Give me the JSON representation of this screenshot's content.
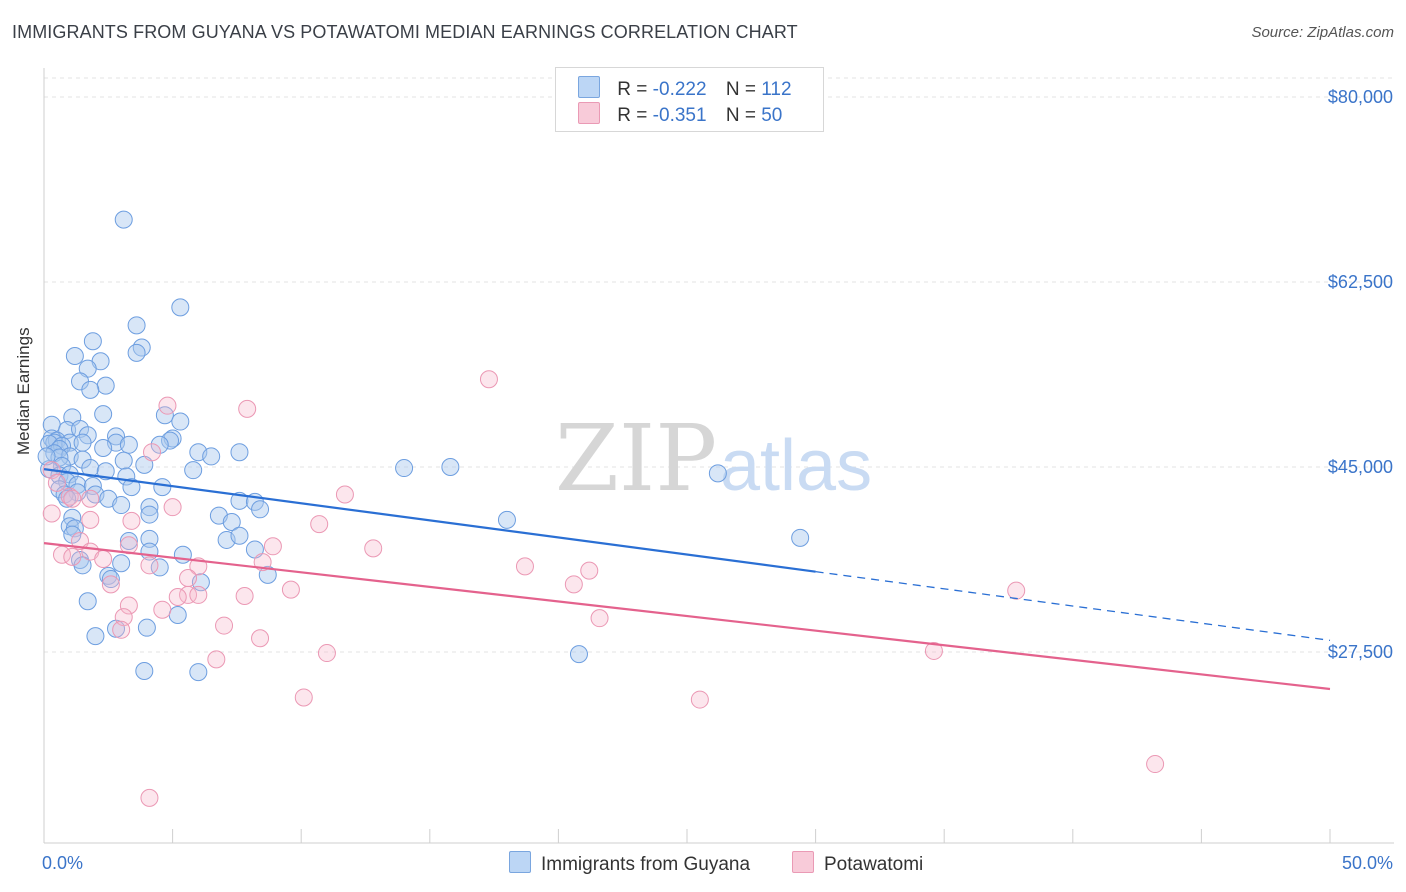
{
  "header": {
    "title": "IMMIGRANTS FROM GUYANA VS POTAWATOMI MEDIAN EARNINGS CORRELATION CHART",
    "source": "Source: ZipAtlas.com"
  },
  "watermark": {
    "zip": "ZIP",
    "atlas": "atlas"
  },
  "legend": {
    "rows": [
      {
        "r_label": "R =",
        "r_value": "-0.222",
        "n_label": "N =",
        "n_value": "112"
      },
      {
        "r_label": "R =",
        "r_value": "-0.351",
        "n_label": "N =",
        "n_value": "50"
      }
    ]
  },
  "chart_data": {
    "type": "scatter",
    "title": "IMMIGRANTS FROM GUYANA VS POTAWATOMI MEDIAN EARNINGS CORRELATION CHART",
    "xlabel": "",
    "ylabel": "Median Earnings",
    "xlim": [
      0,
      50
    ],
    "ylim": [
      10000,
      82000
    ],
    "x_tick_labels": [
      "0.0%",
      "50.0%"
    ],
    "y_ticks": [
      27500,
      45000,
      62500,
      80000
    ],
    "y_tick_labels": [
      "$27,500",
      "$45,000",
      "$62,500",
      "$80,000"
    ],
    "grid": true,
    "legend_position": "top-center",
    "series": [
      {
        "name": "Immigrants from Guyana",
        "color": "#a9c8ee",
        "line_color": "#2a6fd4",
        "r": -0.222,
        "n": 112,
        "trend": {
          "x0": 0,
          "y0": 44800,
          "x1": 30,
          "y1": 35100,
          "x_dash_end": 50,
          "y_dash_end": 28600
        },
        "points": [
          [
            3.1,
            68400
          ],
          [
            5.3,
            60100
          ],
          [
            3.6,
            58400
          ],
          [
            1.9,
            56900
          ],
          [
            3.8,
            56300
          ],
          [
            2.2,
            55000
          ],
          [
            3.6,
            55800
          ],
          [
            1.2,
            55500
          ],
          [
            1.7,
            54300
          ],
          [
            1.4,
            53100
          ],
          [
            2.4,
            52700
          ],
          [
            1.8,
            52300
          ],
          [
            2.3,
            50000
          ],
          [
            4.7,
            49900
          ],
          [
            1.1,
            49700
          ],
          [
            5.3,
            49300
          ],
          [
            0.3,
            49000
          ],
          [
            0.9,
            48500
          ],
          [
            1.4,
            48600
          ],
          [
            1.7,
            48000
          ],
          [
            2.8,
            47900
          ],
          [
            5.0,
            47700
          ],
          [
            4.9,
            47500
          ],
          [
            0.3,
            47700
          ],
          [
            0.5,
            47500
          ],
          [
            0.4,
            47300
          ],
          [
            0.2,
            47200
          ],
          [
            1.0,
            47300
          ],
          [
            1.5,
            47300
          ],
          [
            2.8,
            47300
          ],
          [
            3.3,
            47100
          ],
          [
            4.5,
            47100
          ],
          [
            0.7,
            47000
          ],
          [
            2.3,
            46800
          ],
          [
            0.6,
            46700
          ],
          [
            6.0,
            46400
          ],
          [
            7.6,
            46400
          ],
          [
            6.5,
            46000
          ],
          [
            0.4,
            46300
          ],
          [
            1.0,
            46000
          ],
          [
            0.6,
            45900
          ],
          [
            1.5,
            45700
          ],
          [
            3.1,
            45600
          ],
          [
            3.9,
            45200
          ],
          [
            0.7,
            45100
          ],
          [
            1.8,
            44900
          ],
          [
            2.4,
            44600
          ],
          [
            5.8,
            44700
          ],
          [
            0.2,
            44800
          ],
          [
            0.6,
            44200
          ],
          [
            1.0,
            44300
          ],
          [
            3.2,
            44100
          ],
          [
            0.9,
            43600
          ],
          [
            1.3,
            43300
          ],
          [
            1.9,
            43200
          ],
          [
            3.4,
            43100
          ],
          [
            4.6,
            43100
          ],
          [
            0.6,
            42900
          ],
          [
            1.3,
            42600
          ],
          [
            2.0,
            42400
          ],
          [
            0.8,
            42400
          ],
          [
            0.9,
            42000
          ],
          [
            2.5,
            42000
          ],
          [
            7.6,
            41800
          ],
          [
            8.2,
            41700
          ],
          [
            3.0,
            41400
          ],
          [
            4.1,
            41200
          ],
          [
            4.1,
            40500
          ],
          [
            8.4,
            41000
          ],
          [
            6.8,
            40400
          ],
          [
            7.3,
            39800
          ],
          [
            1.1,
            40200
          ],
          [
            1.0,
            39400
          ],
          [
            1.2,
            39200
          ],
          [
            1.1,
            38600
          ],
          [
            4.1,
            38200
          ],
          [
            7.1,
            38100
          ],
          [
            3.3,
            38000
          ],
          [
            7.6,
            38500
          ],
          [
            8.2,
            37200
          ],
          [
            4.1,
            37000
          ],
          [
            5.4,
            36700
          ],
          [
            1.4,
            36200
          ],
          [
            3.0,
            35900
          ],
          [
            1.5,
            35700
          ],
          [
            4.5,
            35500
          ],
          [
            8.7,
            34800
          ],
          [
            2.5,
            34700
          ],
          [
            2.6,
            34400
          ],
          [
            6.1,
            34100
          ],
          [
            1.7,
            32300
          ],
          [
            5.2,
            31000
          ],
          [
            2.8,
            29700
          ],
          [
            4.0,
            29800
          ],
          [
            2.0,
            29000
          ],
          [
            14.0,
            44900
          ],
          [
            15.8,
            45000
          ],
          [
            26.2,
            44400
          ],
          [
            18.0,
            40000
          ],
          [
            29.4,
            38300
          ],
          [
            20.8,
            27300
          ],
          [
            3.9,
            25700
          ],
          [
            6.0,
            25600
          ],
          [
            0.1,
            46000
          ]
        ]
      },
      {
        "name": "Potawatomi",
        "color": "#f5b8cb",
        "line_color": "#e4628d",
        "r": -0.351,
        "n": 50,
        "trend": {
          "x0": 0,
          "y0": 37800,
          "x1": 50,
          "y1": 24000
        },
        "points": [
          [
            17.3,
            53300
          ],
          [
            4.8,
            50800
          ],
          [
            7.9,
            50500
          ],
          [
            4.2,
            46400
          ],
          [
            0.3,
            44700
          ],
          [
            0.5,
            43500
          ],
          [
            1.0,
            42200
          ],
          [
            1.1,
            42000
          ],
          [
            1.8,
            42000
          ],
          [
            11.7,
            42400
          ],
          [
            5.0,
            41200
          ],
          [
            0.3,
            40600
          ],
          [
            1.8,
            40000
          ],
          [
            3.4,
            39900
          ],
          [
            10.7,
            39600
          ],
          [
            1.4,
            38000
          ],
          [
            3.3,
            37600
          ],
          [
            8.9,
            37500
          ],
          [
            12.8,
            37300
          ],
          [
            1.8,
            37000
          ],
          [
            0.7,
            36700
          ],
          [
            1.1,
            36500
          ],
          [
            2.3,
            36300
          ],
          [
            8.5,
            36000
          ],
          [
            4.1,
            35700
          ],
          [
            6.0,
            35600
          ],
          [
            18.7,
            35600
          ],
          [
            21.2,
            35200
          ],
          [
            5.6,
            34500
          ],
          [
            2.6,
            33900
          ],
          [
            20.6,
            33900
          ],
          [
            9.6,
            33400
          ],
          [
            37.8,
            33300
          ],
          [
            5.6,
            32900
          ],
          [
            6.0,
            32900
          ],
          [
            7.8,
            32800
          ],
          [
            5.2,
            32700
          ],
          [
            4.6,
            31500
          ],
          [
            3.3,
            31900
          ],
          [
            3.1,
            30800
          ],
          [
            21.6,
            30700
          ],
          [
            7.0,
            30000
          ],
          [
            3.0,
            29600
          ],
          [
            8.4,
            28800
          ],
          [
            34.6,
            27600
          ],
          [
            11.0,
            27400
          ],
          [
            6.7,
            26800
          ],
          [
            10.1,
            23200
          ],
          [
            25.5,
            23000
          ],
          [
            43.2,
            16900
          ],
          [
            4.1,
            13700
          ]
        ]
      }
    ]
  },
  "bottom_legend": {
    "items": [
      {
        "label": "Immigrants from Guyana"
      },
      {
        "label": "Potawatomi"
      }
    ]
  }
}
